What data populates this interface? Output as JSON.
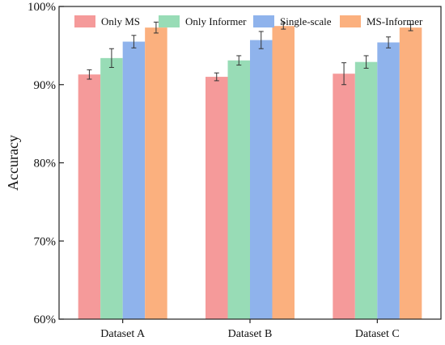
{
  "chart_data": {
    "type": "bar",
    "title": "",
    "xlabel": "",
    "ylabel": "Accuracy",
    "ylim": [
      60,
      100
    ],
    "yticks": [
      "60%",
      "70%",
      "80%",
      "90%",
      "100%"
    ],
    "categories": [
      "Dataset A",
      "Dataset B",
      "Dataset C"
    ],
    "legend_position": "top",
    "series": [
      {
        "name": "Only MS",
        "color": "#f59a9a",
        "values": [
          91.3,
          91.0,
          91.4
        ],
        "errors": [
          0.6,
          0.5,
          1.4
        ]
      },
      {
        "name": "Only Informer",
        "color": "#98dcb6",
        "values": [
          93.4,
          93.1,
          92.9
        ],
        "errors": [
          1.2,
          0.6,
          0.8
        ]
      },
      {
        "name": "Single-scale",
        "color": "#8fb3ec",
        "values": [
          95.5,
          95.7,
          95.4
        ],
        "errors": [
          0.8,
          1.1,
          0.7
        ]
      },
      {
        "name": "MS-Informer",
        "color": "#fbb07e",
        "values": [
          97.3,
          97.5,
          97.3
        ],
        "errors": [
          0.7,
          0.4,
          0.4
        ]
      }
    ]
  }
}
